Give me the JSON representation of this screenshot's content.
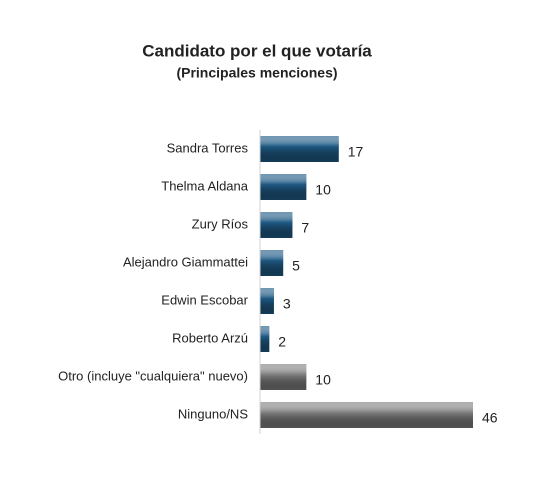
{
  "chart_data": {
    "type": "bar",
    "orientation": "horizontal",
    "title": "Candidato por el que votaría",
    "subtitle": "(Principales menciones)",
    "categories": [
      "Sandra Torres",
      "Thelma Aldana",
      "Zury Ríos",
      "Alejandro Giammattei",
      "Edwin Escobar",
      "Roberto Arzú",
      "Otro (incluye \"cualquiera\" nuevo)",
      "Ninguno/NS"
    ],
    "values": [
      17,
      10,
      7,
      5,
      3,
      2,
      10,
      46
    ],
    "colors": [
      "#1f5a85",
      "#1f5a85",
      "#1f5a85",
      "#1f5a85",
      "#1f5a85",
      "#1f5a85",
      "#808080",
      "#808080"
    ]
  }
}
